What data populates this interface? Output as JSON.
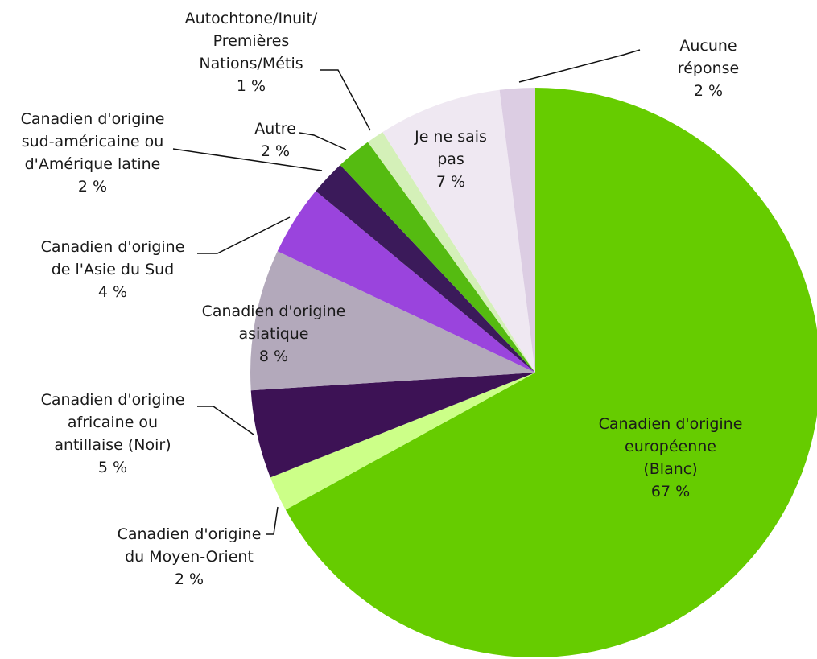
{
  "chart_data": {
    "type": "pie",
    "categories": [
      "Canadien d'origine\neuropéenne (Blanc)",
      "Canadien d'origine\ndu Moyen-Orient",
      "Canadien d'origine\nafricaine ou\nantillaise (Noir)",
      "Canadien d'origine\nasiatique",
      "Canadien d'origine\nde l'Asie du Sud",
      "Canadien d'origine\nsud-américaine ou\nd'Amérique latine",
      "Autre",
      "Autochtone/Inuit/\nPremières\nNations/Métis",
      "Je ne sais\npas",
      "Aucune réponse"
    ],
    "values": [
      67,
      2,
      5,
      8,
      4,
      2,
      2,
      1,
      7,
      2
    ],
    "value_labels": [
      "67 %",
      "2 %",
      "5 %",
      "8 %",
      "4 %",
      "2 %",
      "2 %",
      "1 %",
      "7 %",
      "2 %"
    ],
    "colors": [
      "#66cc00",
      "#ccff88",
      "#3d1255",
      "#b3a9bb",
      "#9a44dd",
      "#3b1a5a",
      "#55bb11",
      "#d4f0b8",
      "#efe8f2",
      "#dccde3"
    ]
  }
}
